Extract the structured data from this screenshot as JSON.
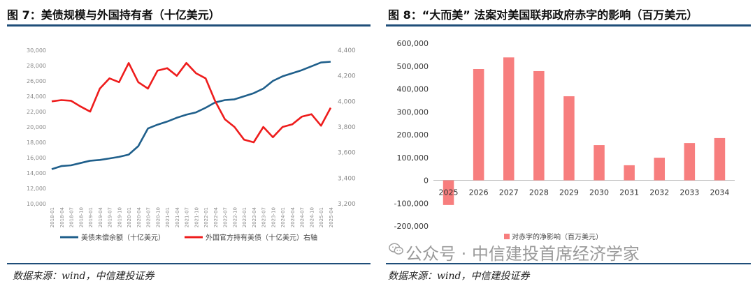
{
  "left": {
    "title": "图 7：美债规模与外国持有者（十亿美元）",
    "source": "数据来源：wind，中信建投证券"
  },
  "right": {
    "title": "图 8：“大而美” 法案对美国联邦政府赤字的影响（百万美元）",
    "source": "数据来源：wind，中信建投证券"
  },
  "watermark": "公众号 · 中信建投首席经济学家",
  "colors": {
    "navy": "#1f5f8b",
    "red": "#ee1c1c",
    "bar": "#f77e7e",
    "rule": "#1f4e79"
  },
  "chart_data": [
    {
      "type": "line",
      "x": [
        "2018-01",
        "2018-04",
        "2018-07",
        "2018-10",
        "2019-01",
        "2019-04",
        "2019-07",
        "2019-10",
        "2020-01",
        "2020-04",
        "2020-07",
        "2020-10",
        "2021-01",
        "2021-04",
        "2021-07",
        "2021-10",
        "2022-01",
        "2022-04",
        "2022-07",
        "2022-10",
        "2023-01",
        "2023-04",
        "2023-07",
        "2023-10",
        "2024-01",
        "2024-04",
        "2024-07",
        "2024-10",
        "2025-01",
        "2025-04"
      ],
      "y_left_ticks": [
        "10,000",
        "12,000",
        "14,000",
        "16,000",
        "18,000",
        "20,000",
        "22,000",
        "24,000",
        "26,000",
        "28,000",
        "30,000"
      ],
      "y_right_ticks": [
        "3,200",
        "3,400",
        "3,600",
        "3,800",
        "4,000",
        "4,200",
        "4,400"
      ],
      "ylim_left": [
        10000,
        30000
      ],
      "ylim_right": [
        3200,
        4400
      ],
      "series": [
        {
          "name": "美债未偿余额（十亿美元）",
          "axis": "left",
          "values": [
            14500,
            14900,
            15000,
            15300,
            15600,
            15700,
            15900,
            16100,
            16400,
            17500,
            19800,
            20300,
            20700,
            21200,
            21600,
            21900,
            22500,
            23200,
            23500,
            23600,
            24000,
            24400,
            25000,
            26000,
            26600,
            27000,
            27400,
            27900,
            28400,
            28500
          ]
        },
        {
          "name": "外国官方持有美债（十亿美元）右轴",
          "axis": "right",
          "values": [
            4000,
            4010,
            4005,
            3960,
            3920,
            4100,
            4180,
            4150,
            4300,
            4150,
            4100,
            4240,
            4260,
            4200,
            4300,
            4220,
            4180,
            4000,
            3860,
            3800,
            3700,
            3680,
            3800,
            3720,
            3800,
            3820,
            3880,
            3900,
            3810,
            3950
          ]
        }
      ],
      "legend": "bottom"
    },
    {
      "type": "bar",
      "categories": [
        "2025",
        "2026",
        "2027",
        "2028",
        "2029",
        "2030",
        "2031",
        "2032",
        "2033",
        "2034"
      ],
      "series": [
        {
          "name": "对赤字的净影响（百万美元）",
          "values": [
            -108000,
            487000,
            538000,
            478000,
            368000,
            154000,
            66000,
            99000,
            163000,
            185000
          ]
        }
      ],
      "y_ticks": [
        "-200,000",
        "-100,000",
        "0",
        "100,000",
        "200,000",
        "300,000",
        "400,000",
        "500,000",
        "600,000"
      ],
      "ylim": [
        -200000,
        600000
      ],
      "legend": "bottom"
    }
  ]
}
